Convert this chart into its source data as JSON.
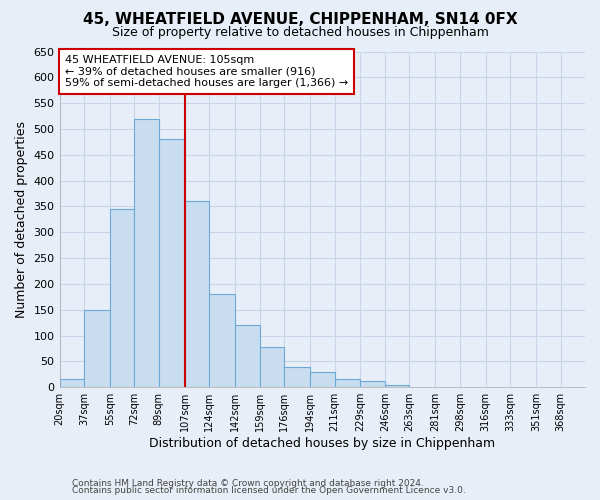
{
  "title1": "45, WHEATFIELD AVENUE, CHIPPENHAM, SN14 0FX",
  "title2": "Size of property relative to detached houses in Chippenham",
  "xlabel": "Distribution of detached houses by size in Chippenham",
  "ylabel": "Number of detached properties",
  "bin_labels": [
    "20sqm",
    "37sqm",
    "55sqm",
    "72sqm",
    "89sqm",
    "107sqm",
    "124sqm",
    "142sqm",
    "159sqm",
    "176sqm",
    "194sqm",
    "211sqm",
    "229sqm",
    "246sqm",
    "263sqm",
    "281sqm",
    "298sqm",
    "316sqm",
    "333sqm",
    "351sqm",
    "368sqm"
  ],
  "bar_heights": [
    15,
    150,
    345,
    520,
    480,
    360,
    180,
    120,
    78,
    40,
    30,
    15,
    12,
    5,
    0,
    0,
    0,
    0,
    0,
    0,
    0
  ],
  "bar_color": "#c9ddf0",
  "bar_edge_color": "#6aaad4",
  "vline_x_idx": 5,
  "ylim": [
    0,
    650
  ],
  "yticks": [
    0,
    50,
    100,
    150,
    200,
    250,
    300,
    350,
    400,
    450,
    500,
    550,
    600,
    650
  ],
  "annotation_line1": "45 WHEATFIELD AVENUE: 105sqm",
  "annotation_line2": "← 39% of detached houses are smaller (916)",
  "annotation_line3": "59% of semi-detached houses are larger (1,366) →",
  "annotation_box_color": "#ffffff",
  "annotation_box_edge": "#cc0000",
  "footer1": "Contains HM Land Registry data © Crown copyright and database right 2024.",
  "footer2": "Contains public sector information licensed under the Open Government Licence v3.0.",
  "vline_color": "#cc0000",
  "background_color": "#e8eef7",
  "grid_color": "#c8d4e8",
  "title1_fontsize": 11,
  "title2_fontsize": 9
}
